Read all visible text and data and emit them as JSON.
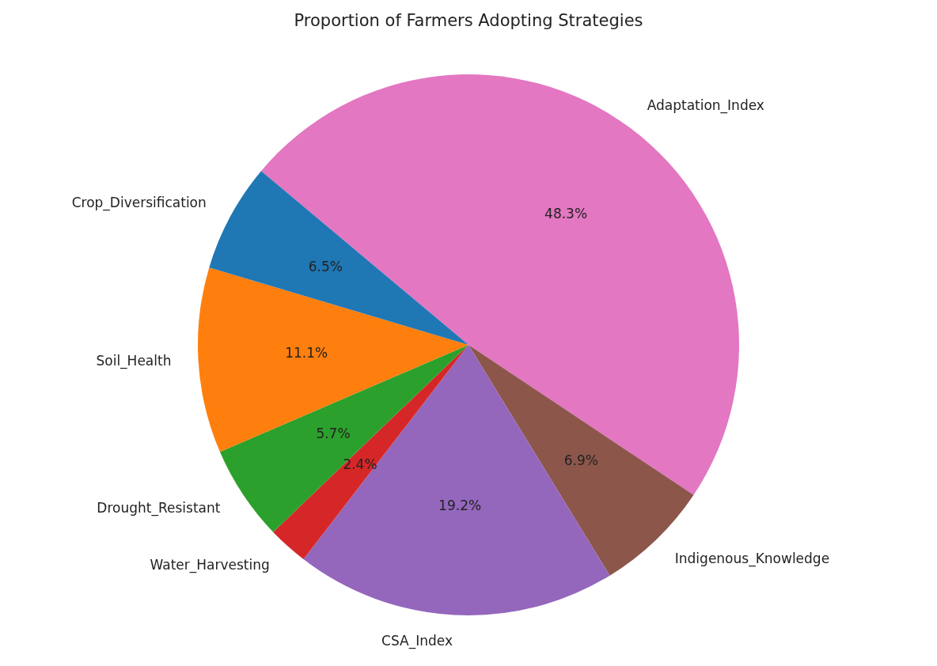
{
  "chart_data": {
    "type": "pie",
    "title": "Proportion of Farmers Adopting Strategies",
    "categories": [
      "Adaptation_Index",
      "Indigenous_Knowledge",
      "CSA_Index",
      "Water_Harvesting",
      "Drought_Resistant",
      "Soil_Health",
      "Crop_Diversification"
    ],
    "values": [
      48.3,
      6.9,
      19.2,
      2.4,
      5.7,
      11.1,
      6.5
    ],
    "colors": [
      "#e377c2",
      "#8c564b",
      "#9467bd",
      "#d62728",
      "#2ca02c",
      "#ff7f0e",
      "#1f77b4"
    ],
    "value_labels": [
      "48.3%",
      "6.9%",
      "19.2%",
      "2.4%",
      "5.7%",
      "11.1%",
      "6.5%"
    ],
    "legend": false
  }
}
